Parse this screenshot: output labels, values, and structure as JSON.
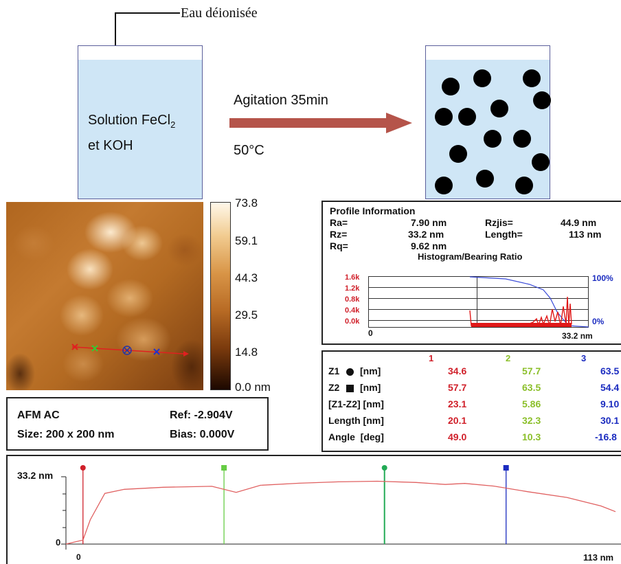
{
  "synthesis": {
    "water_label": "Eau déionisée",
    "solution_label_line1": "Solution FeCl",
    "solution_subscript": "2",
    "solution_label_line2": "et KOH",
    "condition_top": "Agitation 35min",
    "condition_bottom": "50°C",
    "colors": {
      "liquid": "#cfe6f6",
      "arrow": "#b5544a",
      "particle": "#000000"
    }
  },
  "afm_image": {
    "colorbar_ticks": [
      "73.8",
      "59.1",
      "44.3",
      "29.5",
      "14.8",
      "0.0 nm"
    ]
  },
  "afm_info": {
    "mode": "AFM AC",
    "size": "Size: 200 x 200 nm",
    "ref": "Ref: -2.904V",
    "bias": "Bias: 0.000V"
  },
  "profile_info": {
    "title": "Profile Information",
    "ra_label": "Ra=",
    "ra_value": "7.90 nm",
    "rz_label": "Rz=",
    "rz_value": "33.2 nm",
    "rq_label": "Rq=",
    "rq_value": "9.62 nm",
    "rzjis_label": "Rzjis=",
    "rzjis_value": "44.9 nm",
    "length_label": "Length=",
    "length_value": "113 nm",
    "histogram_title": "Histogram/Bearing Ratio",
    "y_ticks": [
      "1.6k",
      "1.2k",
      "0.8k",
      "0.4k",
      "0.0k"
    ],
    "right_top": "100%",
    "right_bottom": "0%",
    "x_start": "0",
    "x_end": "33.2 nm"
  },
  "measurements": {
    "columns": [
      "1",
      "2",
      "3"
    ],
    "rows": [
      {
        "label": "Z1",
        "unit": "[nm]",
        "marker": "circle",
        "values": [
          "34.6",
          "57.7",
          "63.5"
        ]
      },
      {
        "label": "Z2",
        "unit": "[nm]",
        "marker": "square",
        "values": [
          "57.7",
          "63.5",
          "54.4"
        ]
      },
      {
        "label": "[Z1-Z2] [nm]",
        "unit": "",
        "marker": "",
        "values": [
          "23.1",
          "5.86",
          "9.10"
        ]
      },
      {
        "label": "Length [nm]",
        "unit": "",
        "marker": "",
        "values": [
          "20.1",
          "32.3",
          "30.1"
        ]
      },
      {
        "label": "Angle  [deg]",
        "unit": "",
        "marker": "",
        "values": [
          "49.0",
          "10.3",
          "-16.8"
        ]
      }
    ],
    "colors": [
      "#d0202a",
      "#8bbf2a",
      "#1b2cc0"
    ]
  },
  "profile_plot": {
    "y_max_label": "33.2 nm",
    "y_zero_label": "0",
    "x_zero_label": "0",
    "x_end_label": "113 nm",
    "chart_data": {
      "type": "line",
      "x": [
        0,
        3.5,
        5,
        8,
        12,
        20,
        30,
        35,
        40,
        48,
        56,
        64,
        72,
        78,
        82,
        88,
        95,
        103,
        110,
        113
      ],
      "y": [
        0,
        2,
        12,
        25,
        27,
        28,
        28.5,
        25.5,
        29,
        30,
        30.7,
        31,
        30.4,
        29.4,
        29.9,
        28.6,
        25.8,
        23,
        18.8,
        16
      ],
      "ylim": [
        0,
        33.2
      ],
      "xlim": [
        0,
        113
      ],
      "cursors_x": [
        3.5,
        32.5,
        65.5,
        90.5
      ],
      "cursor_colors": [
        "#d0202a",
        "#66cc44",
        "#22aa55",
        "#1b2cc0"
      ]
    }
  }
}
